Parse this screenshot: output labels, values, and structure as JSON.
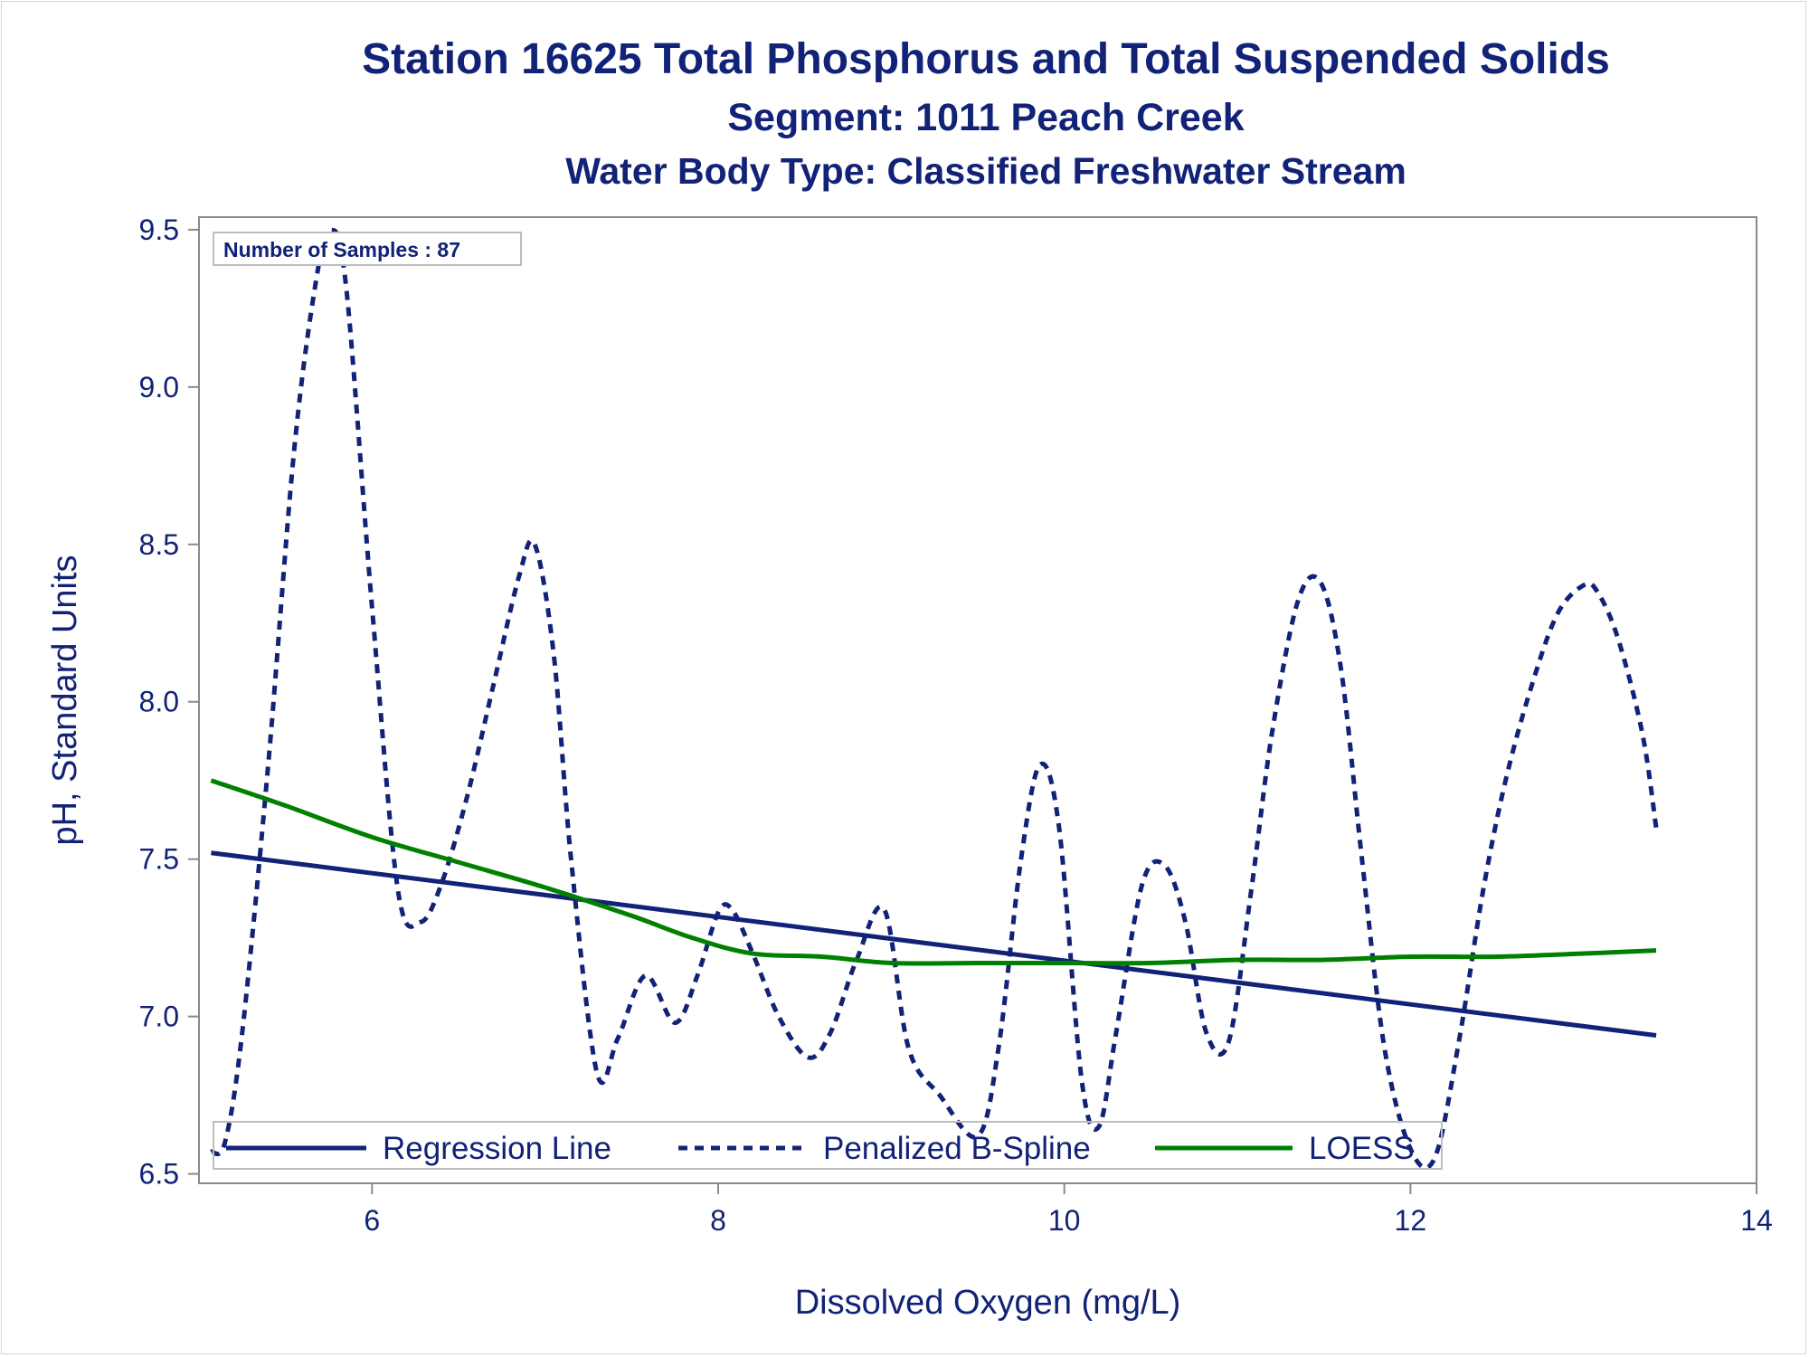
{
  "chart_data": {
    "type": "line",
    "title": "Station 16625  Total Phosphorus and Total Suspended Solids",
    "subtitle_1": "Segment: 1011  Peach Creek",
    "subtitle_2": "Water Body Type: Classified Freshwater Stream",
    "xlabel": "Dissolved Oxygen (mg/L)",
    "ylabel": "pH, Standard Units",
    "xlim": [
      5.0,
      14.0
    ],
    "ylim": [
      6.47,
      9.54
    ],
    "xticks": [
      6,
      8,
      10,
      12,
      14
    ],
    "xtick_labels": [
      "6",
      "8",
      "10",
      "12",
      "14"
    ],
    "yticks": [
      6.5,
      7.0,
      7.5,
      8.0,
      8.5,
      9.0,
      9.5
    ],
    "ytick_labels": [
      "6.5",
      "7.0",
      "7.5",
      "8.0",
      "8.5",
      "9.0",
      "9.5"
    ],
    "grid": false,
    "legend_placement": "bottom-inside",
    "inset_note": "Number of Samples : 87",
    "series": [
      {
        "name": "Regression Line",
        "style": "solid",
        "color": "#112277",
        "x": [
          5.07,
          13.42
        ],
        "y": [
          7.52,
          6.94
        ]
      },
      {
        "name": "Penalized B-Spline",
        "style": "dashed",
        "color": "#112277",
        "x": [
          5.07,
          5.15,
          5.25,
          5.4,
          5.55,
          5.68,
          5.76,
          5.85,
          6.0,
          6.15,
          6.28,
          6.4,
          6.55,
          6.7,
          6.85,
          6.94,
          7.05,
          7.15,
          7.3,
          7.42,
          7.58,
          7.75,
          7.88,
          8.0,
          8.08,
          8.2,
          8.35,
          8.52,
          8.65,
          8.8,
          8.96,
          9.1,
          9.28,
          9.5,
          9.62,
          9.75,
          9.86,
          9.97,
          10.1,
          10.2,
          10.3,
          10.45,
          10.58,
          10.7,
          10.82,
          10.95,
          11.08,
          11.2,
          11.35,
          11.48,
          11.6,
          11.72,
          11.85,
          12.0,
          12.14,
          12.28,
          12.42,
          12.55,
          12.7,
          12.85,
          13.0,
          13.08,
          13.2,
          13.34,
          13.42
        ],
        "y": [
          6.57,
          6.6,
          6.95,
          7.8,
          8.8,
          9.35,
          9.5,
          9.32,
          8.3,
          7.4,
          7.3,
          7.42,
          7.7,
          8.05,
          8.4,
          8.5,
          8.15,
          7.5,
          6.82,
          6.93,
          7.13,
          6.98,
          7.13,
          7.33,
          7.34,
          7.2,
          7.0,
          6.87,
          6.95,
          7.18,
          7.34,
          6.9,
          6.75,
          6.62,
          6.9,
          7.5,
          7.8,
          7.6,
          6.8,
          6.65,
          6.95,
          7.42,
          7.48,
          7.3,
          6.95,
          6.92,
          7.4,
          7.9,
          8.32,
          8.38,
          8.1,
          7.5,
          6.9,
          6.58,
          6.55,
          6.92,
          7.4,
          7.75,
          8.05,
          8.28,
          8.37,
          8.35,
          8.2,
          7.9,
          7.6
        ]
      },
      {
        "name": "LOESS",
        "style": "solid",
        "color": "#008000",
        "x": [
          5.07,
          5.5,
          6.0,
          6.5,
          7.0,
          7.5,
          7.85,
          8.2,
          8.6,
          9.0,
          9.5,
          10.0,
          10.5,
          11.0,
          11.5,
          12.0,
          12.5,
          13.0,
          13.42
        ],
        "y": [
          7.75,
          7.67,
          7.57,
          7.49,
          7.41,
          7.32,
          7.25,
          7.2,
          7.19,
          7.17,
          7.17,
          7.17,
          7.17,
          7.18,
          7.18,
          7.19,
          7.19,
          7.2,
          7.21
        ]
      }
    ]
  }
}
